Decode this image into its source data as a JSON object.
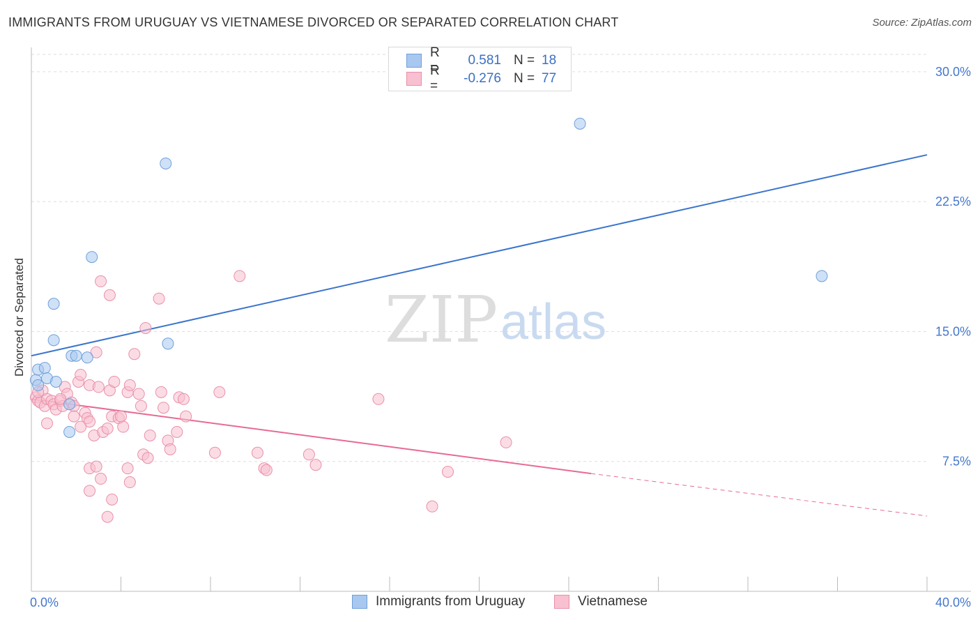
{
  "header": {
    "title": "IMMIGRANTS FROM URUGUAY VS VIETNAMESE DIVORCED OR SEPARATED CORRELATION CHART",
    "source": "Source: ZipAtlas.com"
  },
  "watermark": {
    "zip": "ZIP",
    "atlas": "atlas"
  },
  "legend": {
    "rows": [
      {
        "r_label": "R =",
        "r_value": "0.581",
        "n_label": "N =",
        "n_value": "18",
        "color": "#a8c8f0",
        "border": "#6f9fd8"
      },
      {
        "r_label": "R =",
        "r_value": "-0.276",
        "n_label": "N =",
        "n_value": "77",
        "color": "#f8c0d0",
        "border": "#e890a8"
      }
    ]
  },
  "bottom_legend": {
    "items": [
      {
        "label": "Immigrants from Uruguay",
        "color": "#a8c8f0",
        "border": "#6f9fd8"
      },
      {
        "label": "Vietnamese",
        "color": "#f8c0d0",
        "border": "#e890a8"
      }
    ]
  },
  "chart_data": {
    "type": "scatter",
    "title": "IMMIGRANTS FROM URUGUAY VS VIETNAMESE DIVORCED OR SEPARATED CORRELATION CHART",
    "xlabel": "",
    "ylabel": "Divorced or Separated",
    "xlim": [
      0,
      40
    ],
    "ylim": [
      0,
      31
    ],
    "x_tick_labels": [
      "0.0%",
      "40.0%"
    ],
    "y_ticks": [
      7.5,
      15.0,
      22.5,
      30.0
    ],
    "y_tick_labels": [
      "7.5%",
      "15.0%",
      "22.5%",
      "30.0%"
    ],
    "grid": true,
    "series": [
      {
        "name": "Immigrants from Uruguay",
        "color": "#a8c8f0",
        "stroke": "#6f9fd8",
        "trend_color": "#3a74cc",
        "trend": {
          "x0": 0,
          "y0": 13.6,
          "x1": 40,
          "y1": 25.2
        },
        "points": [
          [
            0.2,
            12.2
          ],
          [
            0.3,
            12.8
          ],
          [
            0.6,
            12.9
          ],
          [
            0.7,
            12.3
          ],
          [
            1.0,
            16.6
          ],
          [
            1.1,
            12.1
          ],
          [
            1.0,
            14.5
          ],
          [
            1.8,
            13.6
          ],
          [
            2.0,
            13.6
          ],
          [
            2.5,
            13.5
          ],
          [
            1.7,
            10.8
          ],
          [
            1.7,
            9.2
          ],
          [
            2.7,
            19.3
          ],
          [
            6.0,
            24.7
          ],
          [
            6.1,
            14.3
          ],
          [
            24.5,
            27.0
          ],
          [
            35.3,
            18.2
          ],
          [
            0.3,
            11.9
          ]
        ]
      },
      {
        "name": "Vietnamese",
        "color": "#f8c0d0",
        "stroke": "#e890a8",
        "trend_color": "#e86a94",
        "trend": {
          "x0": 0,
          "y0": 11.1,
          "x1": 25.0,
          "y1": 6.8,
          "x_end_dashed": 40,
          "y_end_dashed": 4.35
        },
        "points": [
          [
            0.2,
            11.2
          ],
          [
            0.3,
            11.0
          ],
          [
            0.4,
            10.9
          ],
          [
            0.5,
            11.6
          ],
          [
            0.6,
            10.7
          ],
          [
            0.7,
            11.1
          ],
          [
            0.9,
            11.0
          ],
          [
            1.0,
            10.8
          ],
          [
            1.1,
            10.5
          ],
          [
            1.3,
            11.0
          ],
          [
            1.4,
            10.7
          ],
          [
            1.5,
            11.8
          ],
          [
            1.6,
            11.4
          ],
          [
            1.8,
            10.9
          ],
          [
            1.9,
            10.7
          ],
          [
            2.1,
            12.1
          ],
          [
            2.2,
            12.5
          ],
          [
            0.7,
            9.7
          ],
          [
            1.9,
            10.1
          ],
          [
            2.4,
            10.3
          ],
          [
            2.5,
            10.0
          ],
          [
            2.6,
            9.8
          ],
          [
            2.2,
            9.5
          ],
          [
            2.6,
            11.9
          ],
          [
            2.9,
            13.8
          ],
          [
            3.0,
            11.8
          ],
          [
            2.8,
            9.0
          ],
          [
            3.2,
            9.2
          ],
          [
            3.4,
            9.4
          ],
          [
            3.5,
            11.6
          ],
          [
            3.7,
            12.1
          ],
          [
            3.1,
            17.9
          ],
          [
            3.5,
            17.1
          ],
          [
            3.6,
            10.1
          ],
          [
            3.9,
            10.0
          ],
          [
            4.0,
            10.1
          ],
          [
            4.1,
            9.5
          ],
          [
            4.3,
            11.5
          ],
          [
            4.4,
            11.9
          ],
          [
            4.6,
            13.7
          ],
          [
            4.8,
            11.4
          ],
          [
            4.9,
            10.7
          ],
          [
            5.1,
            15.2
          ],
          [
            5.3,
            9.0
          ],
          [
            5.0,
            7.9
          ],
          [
            5.2,
            7.7
          ],
          [
            5.7,
            16.9
          ],
          [
            5.8,
            11.5
          ],
          [
            5.9,
            10.6
          ],
          [
            6.1,
            8.7
          ],
          [
            6.2,
            8.2
          ],
          [
            6.5,
            9.2
          ],
          [
            6.6,
            11.2
          ],
          [
            6.8,
            11.1
          ],
          [
            6.9,
            10.1
          ],
          [
            2.6,
            7.1
          ],
          [
            2.9,
            7.2
          ],
          [
            2.6,
            5.8
          ],
          [
            3.1,
            6.5
          ],
          [
            3.4,
            4.3
          ],
          [
            3.6,
            5.3
          ],
          [
            4.3,
            7.1
          ],
          [
            4.4,
            6.3
          ],
          [
            8.2,
            8.0
          ],
          [
            8.4,
            11.5
          ],
          [
            9.3,
            18.2
          ],
          [
            10.1,
            8.0
          ],
          [
            10.4,
            7.1
          ],
          [
            10.5,
            7.0
          ],
          [
            12.4,
            7.9
          ],
          [
            12.7,
            7.3
          ],
          [
            15.5,
            11.1
          ],
          [
            17.9,
            4.9
          ],
          [
            18.6,
            6.9
          ],
          [
            21.2,
            8.6
          ],
          [
            0.3,
            11.5
          ],
          [
            1.3,
            11.1
          ]
        ]
      }
    ]
  }
}
